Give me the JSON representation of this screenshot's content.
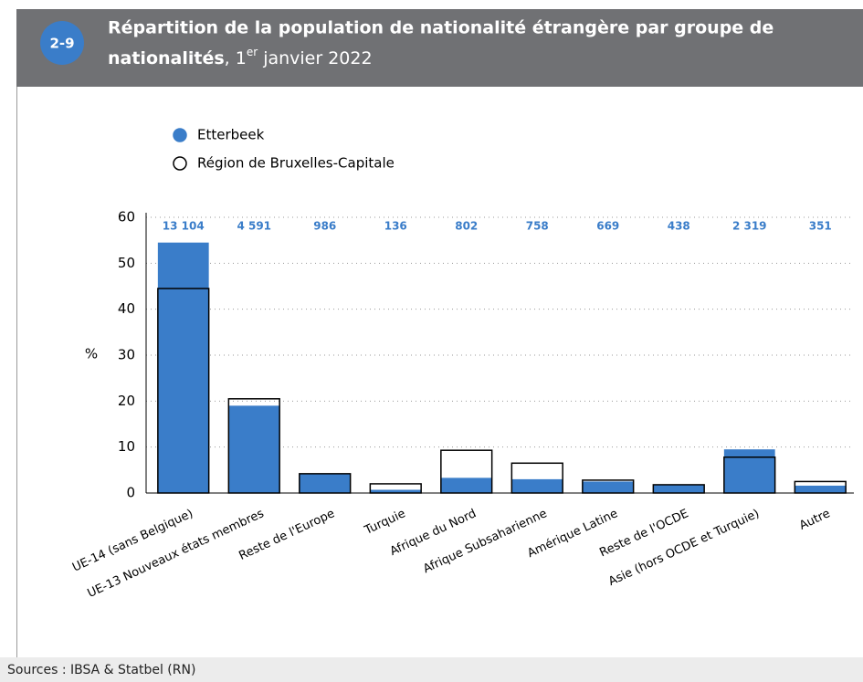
{
  "badge": "2-9",
  "chart_data": {
    "type": "bar",
    "title": [
      "Répartition de la population de nationalité étrangère par groupe de",
      "nationalités",
      ", 1",
      "er",
      " janvier 2022"
    ],
    "y_label": "%",
    "categories": [
      "UE-14 (sans Belgique)",
      "UE-13 Nouveaux états membres",
      "Reste de l'Europe",
      "Turquie",
      "Afrique du Nord",
      "Afrique Subsaharienne",
      "Amérique Latine",
      "Reste de l'OCDE",
      "Asie (hors OCDE et Turquie)",
      "Autre"
    ],
    "top_labels": [
      "13 104",
      "4 591",
      "986",
      "136",
      "802",
      "758",
      "669",
      "438",
      "2 319",
      "351"
    ],
    "series": [
      {
        "name": "Etterbeek",
        "color": "#3a7dc9",
        "values": [
          54.5,
          19,
          4.2,
          0.7,
          3.3,
          3.0,
          2.5,
          1.8,
          9.5,
          1.6
        ]
      },
      {
        "name": "Région de Bruxelles-Capitale",
        "color": "#000000",
        "values": [
          44.5,
          20.5,
          4.2,
          2.0,
          9.3,
          6.5,
          2.8,
          1.8,
          7.8,
          2.5
        ]
      }
    ],
    "ylim": [
      0,
      60
    ],
    "yticks": [
      0,
      10,
      20,
      30,
      40,
      50,
      60
    ],
    "grid": true
  },
  "source": "Sources : IBSA & Statbel (RN)"
}
